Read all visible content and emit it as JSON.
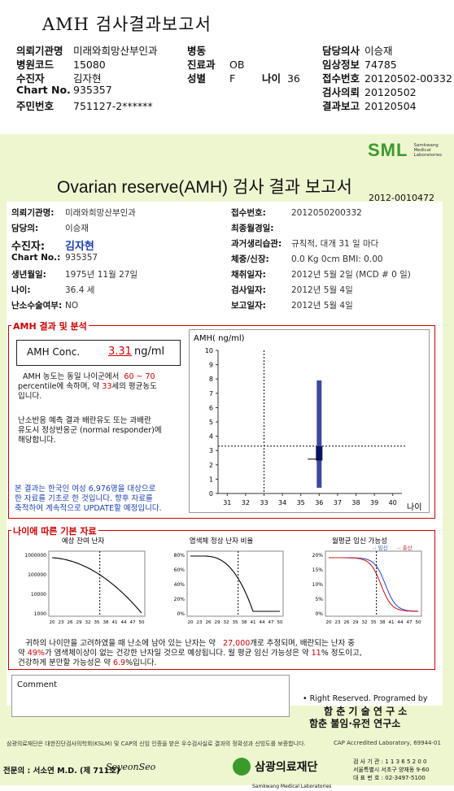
{
  "top_header": {
    "title": "AMH 검사결과보고서",
    "rows": [
      [
        {
          "label": "의뢰기관명",
          "value": "미래와희망산부인과"
        },
        {
          "label": "병동",
          "value": ""
        },
        {
          "label": "담당의사",
          "value": "이승재"
        }
      ],
      [
        {
          "label": "병원코드",
          "value": "15080"
        },
        {
          "label": "진료과",
          "value": "OB"
        },
        {
          "label": "임상정보",
          "value": "74785"
        }
      ],
      [
        {
          "label": "수진자",
          "value": "김자현"
        },
        {
          "label": "성별",
          "value": "F"
        },
        {
          "label": "접수번호",
          "value": "20120502-00332"
        }
      ],
      [
        {
          "label": "Chart No.",
          "value": "935357"
        },
        {
          "label": "",
          "value": ""
        },
        {
          "label": "검사의뢰",
          "value": "20120502"
        }
      ],
      [
        {
          "label": "주민번호",
          "value": "751127-2******"
        },
        {
          "label": "",
          "value": ""
        },
        {
          "label": "결과보고",
          "value": "20120504"
        }
      ]
    ],
    "age_label": "나이",
    "age_value": "36"
  },
  "logo": {
    "text": "SML",
    "sub1": "Samkwang",
    "sub2": "Medical",
    "sub3": "Laboratories"
  },
  "report": {
    "title": "Ovarian reserve(AMH) 검사 결과 보고서",
    "number": "2012-0010472",
    "left_fields": [
      {
        "label": "의뢰기관명:",
        "value": "미래와희망산부인과"
      },
      {
        "label": "담당의:",
        "value": "이승재"
      },
      {
        "label": "수진자:",
        "value": "김자현"
      },
      {
        "label": "Chart No.:",
        "value": "935357"
      },
      {
        "label": "생년월일:",
        "value": "1975년 11월 27일"
      },
      {
        "label": "나이:",
        "value": "36.4 세"
      },
      {
        "label": "난소수술여부:",
        "value": "NO"
      }
    ],
    "right_fields": [
      {
        "label": "접수번호:",
        "value": "2012050200332"
      },
      {
        "label": "최종월경일:",
        "value": ""
      },
      {
        "label": "과거생리습관:",
        "value": "규칙적, 대개   31 일 마다"
      },
      {
        "label": "체중/신장:",
        "value": "0.0 Kg        0cm   BMI:   0.00"
      },
      {
        "label": "채취일자:",
        "value": "2012년 5월 2일    (MCD # 0 일)"
      },
      {
        "label": "검사일자:",
        "value": "2012년 5월 4일"
      },
      {
        "label": "보고일자:",
        "value": "2012년 5월 4일"
      }
    ]
  },
  "amh_section": {
    "heading": "AMH 결과 및 분석",
    "conc_label": "AMH Conc.",
    "conc_value": "3.31",
    "conc_unit": "ng/ml",
    "p1_a": "AMH 농도는 동일 나이군에서",
    "p1_range": "60 ~ 70",
    "p1_b": "percentile에 속하며, 약",
    "p1_age": "33",
    "p1_c": "세의 평균농도",
    "p1_d": "입니다.",
    "p2_lines": [
      "난소반응 예측 결과 배란유도 또는 과배란",
      "유도시 정상반응군 (normal responder)에",
      "해당합니다."
    ],
    "p3_lines": [
      "본 결과는 한국인 여성 6,976명을 대상으로",
      "한 자료를 기초로 한 것입니다. 향후 자료를",
      "축적하여 계속적으로 UPDATE할 예정입니다."
    ]
  },
  "chart_data": [
    {
      "type": "bar",
      "title": "AMH( ng/ml)",
      "xlabel": "나이",
      "ylabel": "",
      "x_ticks": [
        31,
        32,
        33,
        34,
        35,
        36,
        37,
        38,
        39,
        40
      ],
      "y_ticks": [
        0,
        1,
        2,
        3,
        4,
        5,
        6,
        7,
        8,
        9,
        10
      ],
      "ylim": [
        0,
        10
      ],
      "xlim": [
        30.5,
        40.5
      ],
      "range_bar": {
        "x": 36,
        "low": 0.4,
        "high": 7.9
      },
      "box": {
        "x": 36,
        "low": 2.3,
        "high": 3.3
      },
      "median": 2.4,
      "crosshair": {
        "x": 33,
        "y": 3.31
      }
    },
    {
      "type": "line",
      "title": "예상 잔여 난자",
      "x_ticks": [
        20,
        23,
        26,
        29,
        32,
        35,
        38,
        41,
        44,
        47,
        50
      ],
      "y_ticks": [
        "1000000",
        "100000",
        "10000",
        "1000"
      ],
      "marker_x": 36
    },
    {
      "type": "line",
      "title": "염색체 정상 난자 비율",
      "x_ticks": [
        20,
        23,
        26,
        29,
        32,
        35,
        38,
        41,
        44,
        47,
        50
      ],
      "y_ticks": [
        "80%",
        "60%",
        "40%",
        "20%",
        "0%"
      ],
      "marker_x": 36
    },
    {
      "type": "line",
      "title": "월평균 임신 가능성",
      "legend": [
        "-: 임신",
        "-: 출산"
      ],
      "x_ticks": [
        20,
        23,
        26,
        29,
        32,
        35,
        38,
        41,
        44,
        47,
        50
      ],
      "y_ticks": [
        "20%",
        "15%",
        "10%",
        "5%",
        "0%"
      ],
      "marker_x": 36
    }
  ],
  "age_section": {
    "heading": "나이에 따른 기본 자료",
    "line1_a": "귀하의 나이만을 고려하였을 때 난소에 남아 있는 난자는 약",
    "line1_num": "27,000",
    "line1_b": "개로 추정되며, 배란되는 난자 중",
    "line2_a": "약",
    "line2_pct": "49%",
    "line2_b": "가 염색체이상이 없는 건강한 난자일 것으로 예상됩니다. 월 평균 임신 가능성은 약",
    "line2_pct2": "11",
    "line2_c": "% 정도이고,",
    "line3_a": "건강하게 분만할 가능성은 약",
    "line3_pct": "6.9",
    "line3_b": "%입니다."
  },
  "comment_label": "Comment",
  "rights": "• Right Reserved. Programed by",
  "programmer1": "함 춘 기 술 연 구 소",
  "programmer2": "함춘 불임·유전 연구소",
  "footer": {
    "cert": "삼광의료재단은 대한진단검사의학회(KSLM) 및 CAP의 신임 인증을 받은 우수검사실로 결과의 정확성과 신빙도를 보증합니다.",
    "cap": "CAP Accredited Laboratory, 69944-01",
    "doctor": "전문의 : 서소연 M.D. (제 711호)",
    "signature": "SoyeonSeo",
    "org": "삼광의료재단",
    "org_en": "Samkwang Medical Laboratories",
    "info1": "검 사 기 관 : 1 1 3 6 5 2 0 0",
    "info2": "서울특별시 서초구 양재동 9-60",
    "info3": "대 표 번 호 : 02-3497-5100"
  },
  "colors": {
    "accent_red": "#cc0000",
    "bar_navy": "#2a3a8c",
    "bg_green": "#eef6cf",
    "logo_green": "#3a9a2a"
  }
}
